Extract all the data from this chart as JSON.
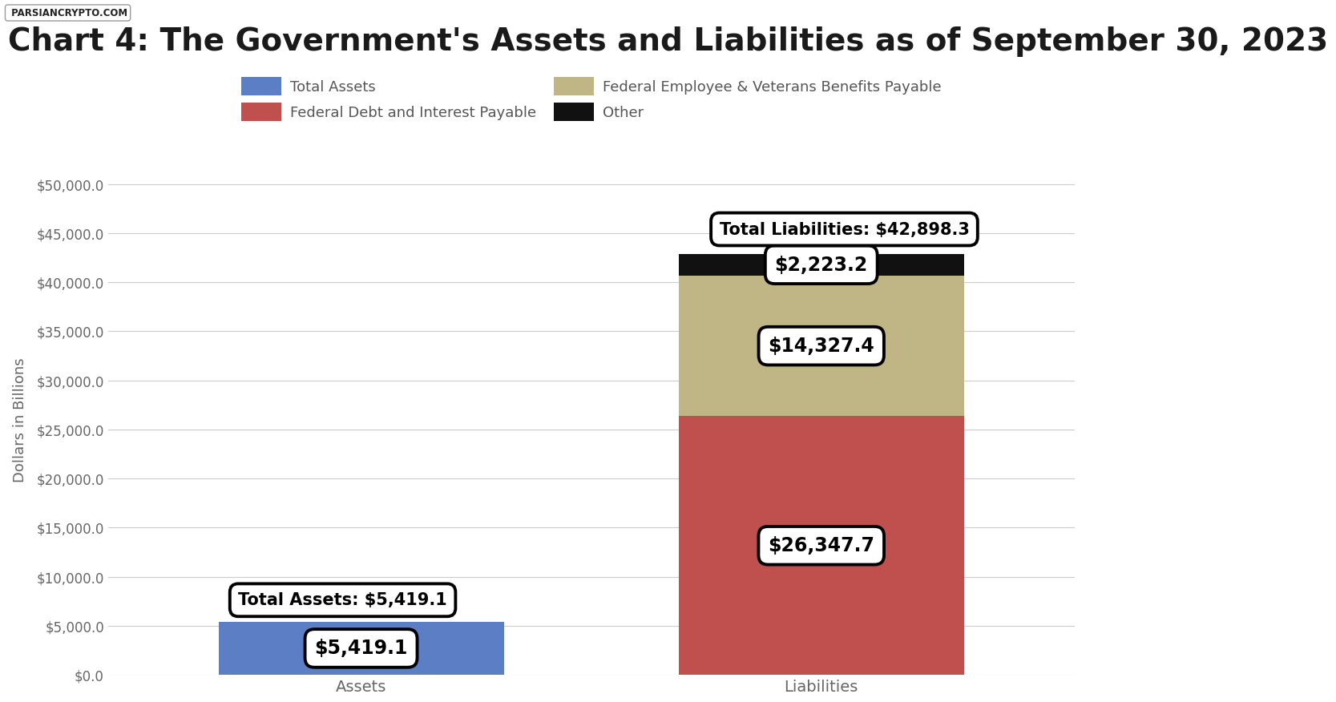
{
  "title": "Chart 4: The Government's Assets and Liabilities as of September 30, 2023",
  "title_fontsize": 28,
  "title_color": "#1a1a1a",
  "ylabel": "Dollars in Billions",
  "ylabel_fontsize": 13,
  "categories": [
    "Assets",
    "Liabilities"
  ],
  "yticks": [
    0,
    5000,
    10000,
    15000,
    20000,
    25000,
    30000,
    35000,
    40000,
    45000,
    50000
  ],
  "ytick_labels": [
    "$0.0",
    "$5,000.0",
    "$10,000.0",
    "$15,000.0",
    "$20,000.0",
    "$25,000.0",
    "$30,000.0",
    "$35,000.0",
    "$40,000.0",
    "$45,000.0",
    "$50,000.0"
  ],
  "ylim": [
    0,
    52000
  ],
  "assets_value": 5419.1,
  "assets_color": "#5b7ec4",
  "fed_debt_value": 26347.7,
  "fed_debt_color": "#c0504d",
  "veterans_value": 14327.4,
  "veterans_color": "#bfb585",
  "other_value": 2223.2,
  "other_color": "#111111",
  "total_liabilities": 42898.3,
  "background_color": "#ffffff",
  "grid_color": "#cccccc",
  "legend_labels": [
    "Total Assets",
    "Federal Debt and Interest Payable",
    "Federal Employee & Veterans Benefits Payable",
    "Other"
  ],
  "legend_colors": [
    "#5b7ec4",
    "#c0504d",
    "#bfb585",
    "#111111"
  ],
  "bar_width": 0.62,
  "watermark_text": "PARSIANCRYPTO.COM",
  "annotation_fontsize": 17,
  "total_annotation_fontsize": 15,
  "tick_color": "#666666",
  "tick_fontsize": 12,
  "xtick_fontsize": 14,
  "legend_fontsize": 13
}
